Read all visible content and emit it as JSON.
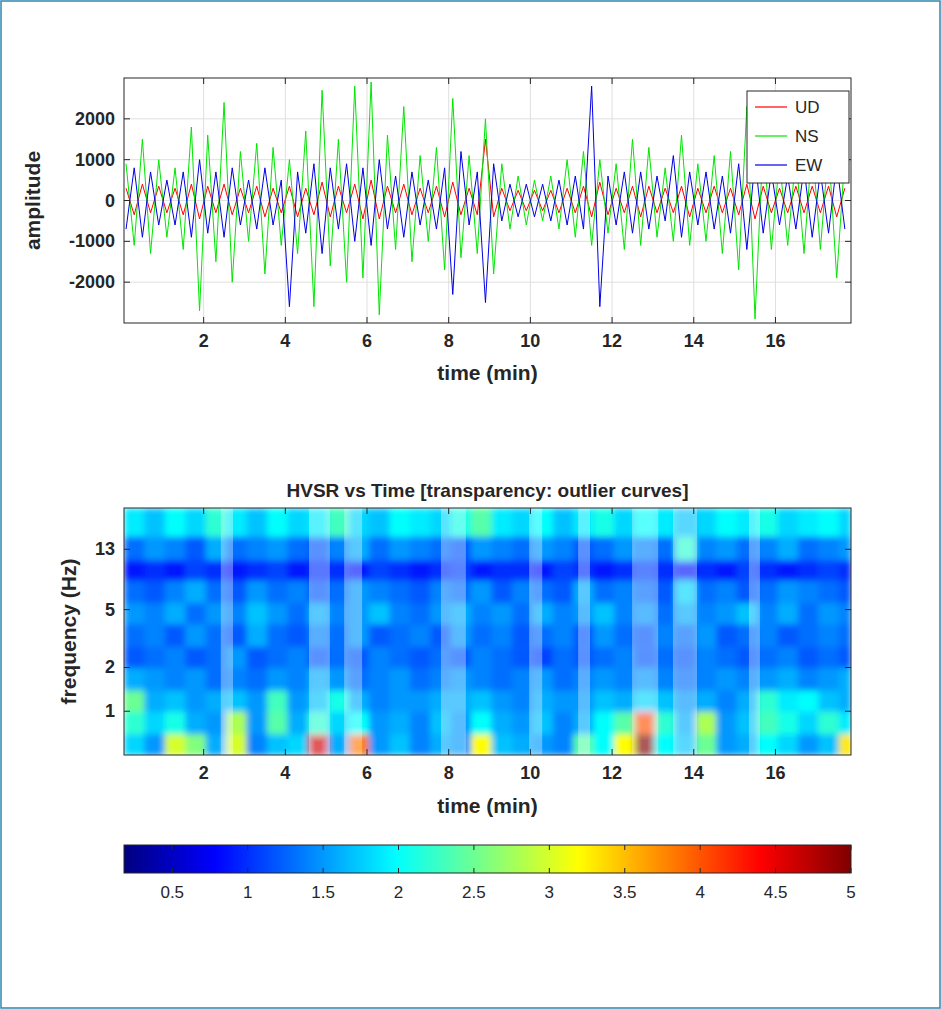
{
  "chart_data": [
    {
      "type": "line",
      "xlabel": "time (min)",
      "ylabel": "amplitude",
      "xlim": [
        0.05,
        17.85
      ],
      "ylim": [
        -3000,
        3000
      ],
      "xticks": [
        2,
        4,
        6,
        8,
        10,
        12,
        14,
        16
      ],
      "yticks": [
        -2000,
        -1000,
        0,
        1000,
        2000
      ],
      "grid": true,
      "legend": "northeast",
      "x": [
        0.1,
        0.3,
        0.5,
        0.7,
        0.9,
        1.1,
        1.3,
        1.5,
        1.7,
        1.9,
        2.1,
        2.3,
        2.5,
        2.7,
        2.9,
        3.1,
        3.3,
        3.5,
        3.7,
        3.9,
        4.1,
        4.3,
        4.5,
        4.7,
        4.9,
        5.1,
        5.3,
        5.5,
        5.7,
        5.9,
        6.1,
        6.3,
        6.5,
        6.7,
        6.9,
        7.1,
        7.3,
        7.5,
        7.7,
        7.9,
        8.1,
        8.3,
        8.5,
        8.7,
        8.9,
        9.1,
        9.3,
        9.5,
        9.7,
        9.9,
        10.1,
        10.3,
        10.5,
        10.7,
        10.9,
        11.1,
        11.3,
        11.5,
        11.7,
        11.9,
        12.1,
        12.3,
        12.5,
        12.7,
        12.9,
        13.1,
        13.3,
        13.5,
        13.7,
        13.9,
        14.1,
        14.3,
        14.5,
        14.7,
        14.9,
        15.1,
        15.3,
        15.5,
        15.7,
        15.9,
        16.1,
        16.3,
        16.5,
        16.7,
        16.9,
        17.1,
        17.3,
        17.5,
        17.7
      ],
      "series": [
        {
          "name": "UD",
          "color": "#ff0000",
          "values": [
            300,
            -350,
            400,
            -300,
            350,
            -300,
            300,
            -350,
            400,
            -450,
            350,
            -300,
            400,
            -350,
            300,
            -300,
            350,
            -400,
            300,
            -300,
            350,
            -400,
            300,
            -350,
            450,
            -400,
            350,
            -300,
            400,
            -450,
            500,
            -450,
            350,
            -300,
            400,
            -350,
            300,
            -300,
            350,
            -400,
            450,
            -350,
            300,
            -350,
            1500,
            -400,
            300,
            -250,
            250,
            -250,
            250,
            -250,
            250,
            -300,
            300,
            -300,
            350,
            -400,
            450,
            -350,
            300,
            -300,
            350,
            -400,
            350,
            -300,
            300,
            -300,
            350,
            -400,
            300,
            -300,
            350,
            -300,
            300,
            -350,
            400,
            -450,
            350,
            -300,
            300,
            -300,
            350,
            -300,
            350,
            -300,
            350,
            -400,
            300
          ]
        },
        {
          "name": "NS",
          "color": "#00e600",
          "values": [
            900,
            -1100,
            1500,
            -1300,
            1000,
            -900,
            800,
            -1200,
            1800,
            -2700,
            1600,
            -1500,
            2400,
            -2000,
            1200,
            -1000,
            1400,
            -1800,
            1300,
            -1100,
            1000,
            -1300,
            1700,
            -2600,
            2700,
            -1600,
            1500,
            -2000,
            2800,
            -1900,
            2900,
            -2800,
            1600,
            -1200,
            2300,
            -1500,
            1100,
            -1000,
            1300,
            -1700,
            2500,
            -1400,
            1100,
            -1300,
            2000,
            -1800,
            900,
            -700,
            600,
            -600,
            500,
            -500,
            600,
            -700,
            1000,
            -900,
            1200,
            -1100,
            1000,
            -800,
            900,
            -1200,
            1500,
            -1100,
            1300,
            -900,
            800,
            -1000,
            1600,
            -1100,
            900,
            -1000,
            1100,
            -1300,
            1200,
            -1700,
            2300,
            -2900,
            1500,
            -1200,
            1000,
            -1100,
            1100,
            -1300,
            1400,
            -1200,
            1300,
            -1900,
            1100
          ]
        },
        {
          "name": "EW",
          "color": "#0000e6",
          "values": [
            -700,
            800,
            -900,
            700,
            -600,
            500,
            -600,
            700,
            -900,
            1000,
            -800,
            700,
            -900,
            800,
            -600,
            500,
            -700,
            800,
            -600,
            500,
            -2600,
            700,
            -800,
            900,
            -1300,
            800,
            -700,
            900,
            -1000,
            800,
            -1100,
            1000,
            -700,
            600,
            -900,
            700,
            -600,
            500,
            -700,
            800,
            -2300,
            1200,
            -600,
            700,
            -2500,
            900,
            -500,
            400,
            -400,
            400,
            -400,
            400,
            -500,
            500,
            -600,
            600,
            -700,
            2800,
            -2600,
            600,
            -600,
            700,
            -800,
            700,
            -700,
            600,
            -500,
            1100,
            -900,
            700,
            -600,
            700,
            -700,
            600,
            -800,
            900,
            -1200,
            1000,
            -800,
            700,
            -600,
            600,
            -700,
            800,
            -900,
            700,
            -800,
            900,
            -700
          ]
        }
      ]
    },
    {
      "type": "heatmap",
      "title": "HVSR vs Time [transparency: outlier curves]",
      "xlabel": "time (min)",
      "ylabel": "frequency (Hz)",
      "xlim": [
        0.05,
        17.85
      ],
      "ylim": [
        0.5,
        25
      ],
      "log": "y",
      "xticks": [
        2,
        4,
        6,
        8,
        10,
        12,
        14,
        16
      ],
      "yticks": [
        1,
        2,
        5,
        13
      ],
      "x_bins": [
        0.05,
        0.55,
        1.05,
        1.55,
        2.05,
        2.55,
        3.05,
        3.55,
        4.05,
        4.55,
        5.05,
        5.55,
        6.05,
        6.55,
        7.05,
        7.55,
        8.05,
        8.55,
        9.05,
        9.55,
        10.05,
        10.55,
        11.05,
        11.55,
        12.05,
        12.55,
        13.05,
        13.55,
        14.05,
        14.55,
        15.05,
        15.55,
        16.05,
        16.55,
        17.05,
        17.55,
        17.85
      ],
      "y_bins": [
        0.5,
        0.7,
        1,
        1.4,
        2,
        2.8,
        4,
        5.6,
        8,
        11,
        16,
        25
      ],
      "cells": [
        [
          1.8,
          1.5,
          3.0,
          2.6,
          1.6,
          3.0,
          1.4,
          1.7,
          1.8,
          4.6,
          1.6,
          3.8,
          1.5,
          1.7,
          1.4,
          1.6,
          1.5,
          3.2,
          1.7,
          1.6,
          1.5,
          1.4,
          2.4,
          2.0,
          3.2,
          5.0,
          2.0,
          1.7,
          2.5,
          1.5,
          1.6,
          2.0,
          1.8,
          1.5,
          1.7,
          3.3
        ],
        [
          2.2,
          1.8,
          2.1,
          1.6,
          1.5,
          2.8,
          1.5,
          2.4,
          1.6,
          2.2,
          1.8,
          2.0,
          1.5,
          1.6,
          1.4,
          1.7,
          1.5,
          2.0,
          1.6,
          1.5,
          1.7,
          1.4,
          1.6,
          2.0,
          2.4,
          4.0,
          2.2,
          1.6,
          2.8,
          1.5,
          1.7,
          2.3,
          2.1,
          1.8,
          2.2,
          1.9
        ],
        [
          2.5,
          1.6,
          1.7,
          1.5,
          1.6,
          1.7,
          1.5,
          2.3,
          1.5,
          1.7,
          2.1,
          1.6,
          1.4,
          1.5,
          1.5,
          1.6,
          1.6,
          1.7,
          1.5,
          1.4,
          1.6,
          1.5,
          1.5,
          1.7,
          1.6,
          1.8,
          1.7,
          1.5,
          1.6,
          1.4,
          1.6,
          2.2,
          1.9,
          2.0,
          1.7,
          1.6
        ],
        [
          1.6,
          1.5,
          1.4,
          1.5,
          1.3,
          1.4,
          1.3,
          1.5,
          1.4,
          1.6,
          1.5,
          1.3,
          1.4,
          1.5,
          1.3,
          1.4,
          1.5,
          1.4,
          1.3,
          1.4,
          1.5,
          1.3,
          1.4,
          1.5,
          1.4,
          1.5,
          1.4,
          1.3,
          1.4,
          1.5,
          1.4,
          1.5,
          1.6,
          1.4,
          1.5,
          1.6
        ],
        [
          1.2,
          1.3,
          1.4,
          1.2,
          1.3,
          1.5,
          1.2,
          1.3,
          1.4,
          1.2,
          1.3,
          1.2,
          1.4,
          1.3,
          1.2,
          1.3,
          1.2,
          1.4,
          1.3,
          1.2,
          1.1,
          1.3,
          1.2,
          1.3,
          1.4,
          1.2,
          1.3,
          1.2,
          1.4,
          1.3,
          1.2,
          1.3,
          1.4,
          1.2,
          1.3,
          1.2
        ],
        [
          1.3,
          1.4,
          1.2,
          1.5,
          1.3,
          1.2,
          1.6,
          1.3,
          1.2,
          1.4,
          1.3,
          1.5,
          1.2,
          1.3,
          1.4,
          1.2,
          1.5,
          1.3,
          1.4,
          1.2,
          1.3,
          1.4,
          1.2,
          1.5,
          1.3,
          1.2,
          1.4,
          1.3,
          1.5,
          1.2,
          1.3,
          1.4,
          1.2,
          1.3,
          1.4,
          1.3
        ],
        [
          1.5,
          1.4,
          1.6,
          1.3,
          1.5,
          1.4,
          1.7,
          1.5,
          1.3,
          1.6,
          1.4,
          1.5,
          1.7,
          1.4,
          1.3,
          1.5,
          1.6,
          1.4,
          1.5,
          1.3,
          1.6,
          1.4,
          1.5,
          1.7,
          1.4,
          1.5,
          1.3,
          1.6,
          1.4,
          1.5,
          1.7,
          1.4,
          1.6,
          1.3,
          1.5,
          1.4
        ],
        [
          1.3,
          1.2,
          1.4,
          1.6,
          1.3,
          1.2,
          1.5,
          1.3,
          1.4,
          1.2,
          1.3,
          1.5,
          1.4,
          1.3,
          1.2,
          1.4,
          1.3,
          1.5,
          1.2,
          1.4,
          1.3,
          1.2,
          1.6,
          1.3,
          1.4,
          1.3,
          1.2,
          1.8,
          1.3,
          1.4,
          1.2,
          1.3,
          1.5,
          1.4,
          1.3,
          1.2
        ],
        [
          0.9,
          1.0,
          0.9,
          1.1,
          1.0,
          0.9,
          1.0,
          1.1,
          0.9,
          1.0,
          1.0,
          0.9,
          1.1,
          1.0,
          0.9,
          1.0,
          1.1,
          0.9,
          1.0,
          1.0,
          0.9,
          1.1,
          1.0,
          0.9,
          1.0,
          1.1,
          1.0,
          0.9,
          1.0,
          0.9,
          1.1,
          1.0,
          0.9,
          1.0,
          1.1,
          1.0
        ],
        [
          1.3,
          1.5,
          1.4,
          1.2,
          1.6,
          1.3,
          1.4,
          1.5,
          1.3,
          1.2,
          1.4,
          1.6,
          1.3,
          1.5,
          1.4,
          1.3,
          1.2,
          1.5,
          1.4,
          1.3,
          1.5,
          1.4,
          1.2,
          1.3,
          1.5,
          1.4,
          1.3,
          2.2,
          1.4,
          1.5,
          1.3,
          1.4,
          1.6,
          1.3,
          1.4,
          1.5
        ],
        [
          1.9,
          1.7,
          2.0,
          1.8,
          2.2,
          1.9,
          1.7,
          2.0,
          1.8,
          1.9,
          2.3,
          1.8,
          1.7,
          2.0,
          1.9,
          1.8,
          2.1,
          2.4,
          1.9,
          1.8,
          2.0,
          1.7,
          1.9,
          2.1,
          1.8,
          2.0,
          1.9,
          1.7,
          1.8,
          2.0,
          1.9,
          2.1,
          1.8,
          1.9,
          2.0,
          1.8
        ]
      ],
      "outlier_windows": [
        [
          2.42,
          2.72
        ],
        [
          4.58,
          5.09
        ],
        [
          5.44,
          5.88
        ],
        [
          7.81,
          8.42
        ],
        [
          9.97,
          10.29
        ],
        [
          11.17,
          11.46
        ],
        [
          12.49,
          13.13
        ],
        [
          13.49,
          14.08
        ],
        [
          15.35,
          15.62
        ]
      ],
      "colorbar": {
        "range": [
          0.18,
          5
        ],
        "ticks": [
          0.5,
          1,
          1.5,
          2,
          2.5,
          3,
          3.5,
          4,
          4.5,
          5
        ]
      }
    }
  ]
}
